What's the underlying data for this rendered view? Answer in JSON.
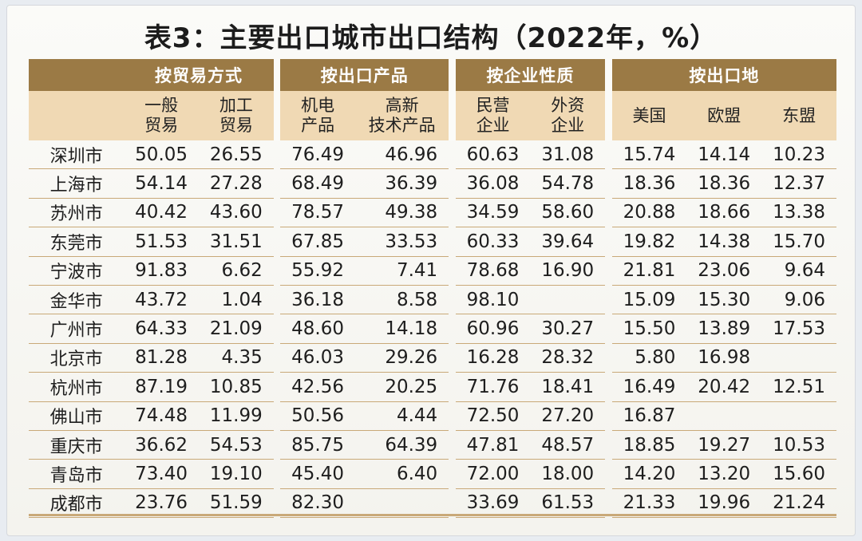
{
  "title": "表3：主要出口城市出口结构（2022年，%）",
  "groups": [
    "按贸易方式",
    "按出口产品",
    "按企业性质",
    "按出口地"
  ],
  "subheaders": [
    "一般\n贸易",
    "加工\n贸易",
    "机电\n产品",
    "高新\n技术产品",
    "民营\n企业",
    "外资\n企业",
    "美国",
    "欧盟",
    "东盟"
  ],
  "rows": [
    {
      "city": "深圳市",
      "values": [
        "50.05",
        "26.55",
        "76.49",
        "46.96",
        "60.63",
        "31.08",
        "15.74",
        "14.14",
        "10.23"
      ]
    },
    {
      "city": "上海市",
      "values": [
        "54.14",
        "27.28",
        "68.49",
        "36.39",
        "36.08",
        "54.78",
        "18.36",
        "18.36",
        "12.37"
      ]
    },
    {
      "city": "苏州市",
      "values": [
        "40.42",
        "43.60",
        "78.57",
        "49.38",
        "34.59",
        "58.60",
        "20.88",
        "18.66",
        "13.38"
      ]
    },
    {
      "city": "东莞市",
      "values": [
        "51.53",
        "31.51",
        "67.85",
        "33.53",
        "60.33",
        "39.64",
        "19.82",
        "14.38",
        "15.70"
      ]
    },
    {
      "city": "宁波市",
      "values": [
        "91.83",
        "6.62",
        "55.92",
        "7.41",
        "78.68",
        "16.90",
        "21.81",
        "23.06",
        "9.64"
      ]
    },
    {
      "city": "金华市",
      "values": [
        "43.72",
        "1.04",
        "36.18",
        "8.58",
        "98.10",
        "",
        "15.09",
        "15.30",
        "9.06"
      ]
    },
    {
      "city": "广州市",
      "values": [
        "64.33",
        "21.09",
        "48.60",
        "14.18",
        "60.96",
        "30.27",
        "15.50",
        "13.89",
        "17.53"
      ]
    },
    {
      "city": "北京市",
      "values": [
        "81.28",
        "4.35",
        "46.03",
        "29.26",
        "16.28",
        "28.32",
        "5.80",
        "16.98",
        ""
      ]
    },
    {
      "city": "杭州市",
      "values": [
        "87.19",
        "10.85",
        "42.56",
        "20.25",
        "71.76",
        "18.41",
        "16.49",
        "20.42",
        "12.51"
      ]
    },
    {
      "city": "佛山市",
      "values": [
        "74.48",
        "11.99",
        "50.56",
        "4.44",
        "72.50",
        "27.20",
        "16.87",
        "",
        ""
      ]
    },
    {
      "city": "重庆市",
      "values": [
        "36.62",
        "54.53",
        "85.75",
        "64.39",
        "47.81",
        "48.57",
        "18.85",
        "19.27",
        "10.53"
      ]
    },
    {
      "city": "青岛市",
      "values": [
        "73.40",
        "19.10",
        "45.40",
        "6.40",
        "72.00",
        "18.00",
        "14.20",
        "13.20",
        "15.60"
      ]
    },
    {
      "city": "成都市",
      "values": [
        "23.76",
        "51.59",
        "82.30",
        "",
        "33.69",
        "61.53",
        "21.33",
        "19.96",
        "21.24"
      ]
    }
  ],
  "colors": {
    "group_header": "#9b7a45",
    "sub_header": "#f0d9b4",
    "rule": "#c9a978"
  }
}
